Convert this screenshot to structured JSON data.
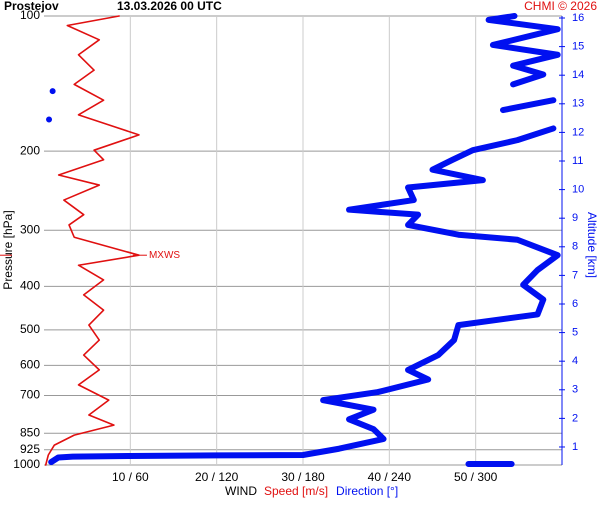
{
  "chart_data": {
    "type": "profile",
    "title": "Prostejov",
    "subtitle": "13.03.2026 00 UTC",
    "credit": "CHMI © 2026",
    "ylabel": "Pressure [hPa]",
    "y2label": "Altitude [km]",
    "xlabel": "WIND",
    "yscale": "log",
    "ylim": [
      1000,
      100
    ],
    "yticks": [
      100,
      200,
      300,
      400,
      500,
      600,
      700,
      850,
      925,
      1000
    ],
    "xlim": [
      0,
      60
    ],
    "x2lim": [
      0,
      360
    ],
    "xticks": [
      {
        "value": 10,
        "label": "10 / 60"
      },
      {
        "value": 20,
        "label": "20 / 120"
      },
      {
        "value": 30,
        "label": "30 / 180"
      },
      {
        "value": 40,
        "label": "40 / 240"
      },
      {
        "value": 50,
        "label": "50 / 300"
      }
    ],
    "y2lim": [
      0.37,
      16.07
    ],
    "y2ticks": [
      1,
      2,
      3,
      4,
      5,
      6,
      7,
      8,
      9,
      10,
      11,
      12,
      13,
      14,
      15,
      16
    ],
    "grid": true,
    "series": [
      {
        "name": "Speed [m/s]",
        "color": "#e01010",
        "pressure": [
          100,
          105,
          113,
          122,
          132,
          142,
          154,
          166,
          184,
          199,
          209,
          226,
          238,
          257,
          277,
          292,
          311,
          341,
          359,
          387,
          418,
          452,
          488,
          527,
          569,
          614,
          663,
          717,
          774,
          815,
          858,
          903,
          950,
          1000
        ],
        "values": [
          8.7,
          2.7,
          6.4,
          4,
          5.8,
          3.5,
          6.9,
          4,
          11,
          5.8,
          6.9,
          1.7,
          6.4,
          2.3,
          4.6,
          2.9,
          3.5,
          11,
          4,
          6.9,
          4.6,
          6.9,
          5.2,
          6.4,
          4.6,
          6.4,
          4,
          7.5,
          5.2,
          8.1,
          3.5,
          1.2,
          0.5,
          0.2
        ]
      },
      {
        "name": "Direction [°]",
        "color": "#0010f0",
        "axis": "x2",
        "pressure": [
          100,
          102,
          107,
          116,
          122,
          129,
          135,
          142,
          null,
          147,
          null,
          154,
          162,
          null,
          170,
          null,
          178,
          189,
          199,
          209,
          220,
          232,
          241,
          257,
          270,
          277,
          292,
          307,
          315,
          341,
          368,
          397,
          428,
          462,
          488,
          527,
          569,
          614,
          645,
          688,
          717,
          753,
          791,
          832,
          875,
          920,
          950,
          952,
          955,
          958,
          962,
          985,
          1000,
          null,
          995,
          995,
          995,
          995
        ],
        "values": [
          327,
          309,
          357,
          312,
          357,
          326,
          347,
          326,
          null,
          6,
          null,
          354,
          319,
          null,
          3.5,
          null,
          354,
          329,
          298,
          284,
          270,
          305,
          253,
          257,
          212,
          260,
          253,
          288,
          329,
          357,
          343,
          333,
          347,
          343,
          288,
          285,
          274,
          253,
          267,
          232,
          194,
          229,
          212,
          229,
          236,
          205,
          180,
          120,
          60,
          20,
          10,
          5,
          null,
          281,
          295,
          310,
          325
        ]
      }
    ],
    "annotation": {
      "text": "MXWS",
      "pressure": 341,
      "value": 11
    }
  }
}
